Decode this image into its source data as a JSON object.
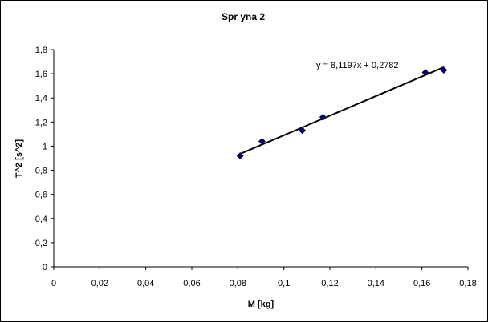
{
  "chart_data": {
    "type": "scatter",
    "title": "Spr    yna 2",
    "xlabel": "M [kg]",
    "ylabel": "T^2 [s^2]",
    "xlim": [
      0,
      0.18
    ],
    "ylim": [
      0,
      1.8
    ],
    "x_ticks": [
      "0",
      "0,02",
      "0,04",
      "0,06",
      "0,08",
      "0,1",
      "0,12",
      "0,14",
      "0,16",
      "0,18"
    ],
    "y_ticks": [
      "0",
      "0,2",
      "0,4",
      "0,6",
      "0,8",
      "1",
      "1,2",
      "1,4",
      "1,6",
      "1,8"
    ],
    "grid": false,
    "legend": "none",
    "series": [
      {
        "points": [
          {
            "x": 0.081,
            "y": 0.92
          },
          {
            "x": 0.0905,
            "y": 1.04
          },
          {
            "x": 0.108,
            "y": 1.13
          },
          {
            "x": 0.117,
            "y": 1.24
          },
          {
            "x": 0.1615,
            "y": 1.61
          },
          {
            "x": 0.1695,
            "y": 1.63
          }
        ],
        "marker_color": "#000080"
      }
    ],
    "trendline": {
      "slope": 8.1197,
      "intercept": 0.2782,
      "x_range": [
        0.081,
        0.1695
      ],
      "equation": "y = 8,1197x + 0,2782",
      "color": "#000000"
    }
  }
}
